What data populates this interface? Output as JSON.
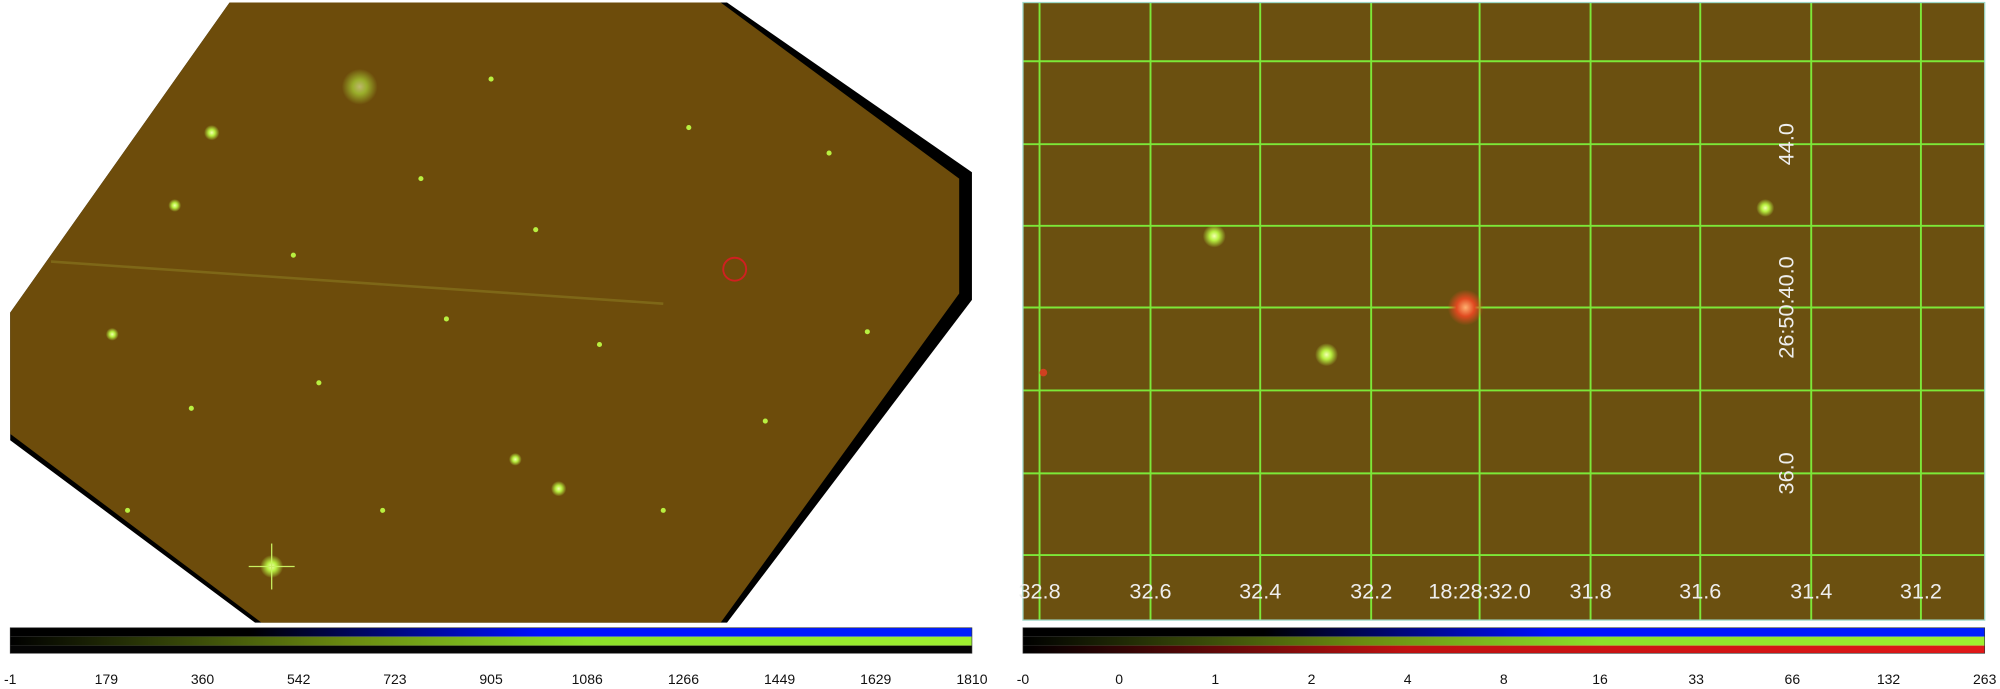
{
  "left_panel": {
    "colorbar": {
      "labels": [
        "-1",
        "179",
        "360",
        "542",
        "723",
        "905",
        "1086",
        "1266",
        "1449",
        "1629",
        "1810"
      ]
    }
  },
  "right_panel": {
    "ra_labels": [
      "32.8",
      "32.6",
      "32.4",
      "32.2",
      "18:28:32.0",
      "31.8",
      "31.6",
      "31.4",
      "31.2"
    ],
    "dec_labels": [
      "44.0",
      "26:50:40.0",
      "36.0"
    ],
    "colorbar": {
      "labels": [
        "-0",
        "0",
        "1",
        "2",
        "4",
        "8",
        "16",
        "33",
        "66",
        "132",
        "263"
      ]
    }
  }
}
